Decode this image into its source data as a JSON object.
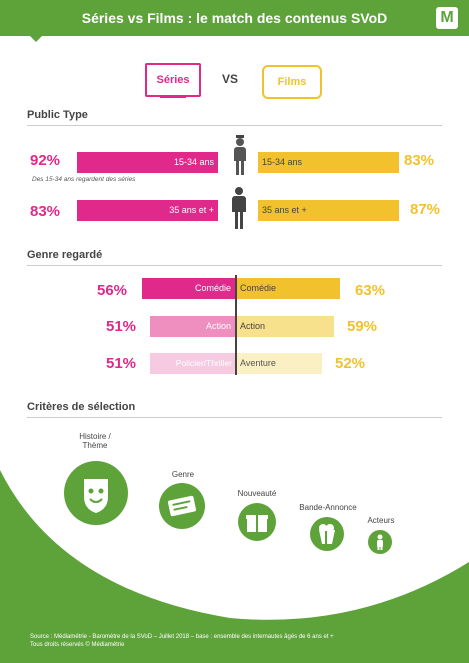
{
  "header": {
    "title": "Séries vs Films : le match des contenus SVoD",
    "logo_letter": "M"
  },
  "legend": {
    "series": "Séries",
    "vs": "VS",
    "films": "Films"
  },
  "public_type": {
    "title": "Public Type",
    "rows": [
      {
        "label_series": "15-34 ans",
        "series": 92,
        "series_text": "92%",
        "label_films": "15-34 ans",
        "films": 83,
        "films_text": "83%",
        "note": "Des 15-34 ans regardent des séries"
      },
      {
        "label_series": "35 ans et +",
        "series": 83,
        "series_text": "83%",
        "label_films": "35 ans et +",
        "films": 87,
        "films_text": "87%"
      }
    ]
  },
  "genre": {
    "title": "Genre regardé",
    "rows": [
      {
        "series_genre": "Comédie",
        "series": 56,
        "series_text": "56%",
        "films_genre": "Comédie",
        "films": 63,
        "films_text": "63%"
      },
      {
        "series_genre": "Action",
        "series": 51,
        "series_text": "51%",
        "films_genre": "Action",
        "films": 59,
        "films_text": "59%"
      },
      {
        "series_genre": "Policier/Thriller",
        "series": 51,
        "series_text": "51%",
        "films_genre": "Aventure",
        "films": 52,
        "films_text": "52%"
      }
    ]
  },
  "criteria": {
    "title": "Critères de sélection",
    "items": [
      {
        "label": "Histoire / Thème",
        "icon": "smiley-shield-icon"
      },
      {
        "label": "Genre",
        "icon": "ticket-icon"
      },
      {
        "label": "Nouveauté",
        "icon": "gift-icon"
      },
      {
        "label": "Bande-Annonce",
        "icon": "popcorn-icon"
      },
      {
        "label": "Acteurs",
        "icon": "person-icon"
      }
    ]
  },
  "footer": {
    "source": "Source : Médiamétrie - Baromètre de la SVoD – Juillet 2018 – base : ensemble des internautes âgés de 6 ans et +",
    "rights": "Tous droits réservés © Médiamétrie"
  },
  "colors": {
    "series": "#e0298a",
    "films": "#f2c22e",
    "green": "#5ea33a"
  },
  "chart_data": [
    {
      "type": "bar",
      "title": "Public Type",
      "categories": [
        "15-34 ans",
        "35 ans et +"
      ],
      "series": [
        {
          "name": "Séries",
          "values": [
            92,
            83
          ]
        },
        {
          "name": "Films",
          "values": [
            83,
            87
          ]
        }
      ]
    },
    {
      "type": "bar",
      "title": "Genre regardé",
      "series": [
        {
          "name": "Séries",
          "categories": [
            "Comédie",
            "Action",
            "Policier/Thriller"
          ],
          "values": [
            56,
            51,
            51
          ]
        },
        {
          "name": "Films",
          "categories": [
            "Comédie",
            "Action",
            "Aventure"
          ],
          "values": [
            63,
            59,
            52
          ]
        }
      ]
    }
  ]
}
